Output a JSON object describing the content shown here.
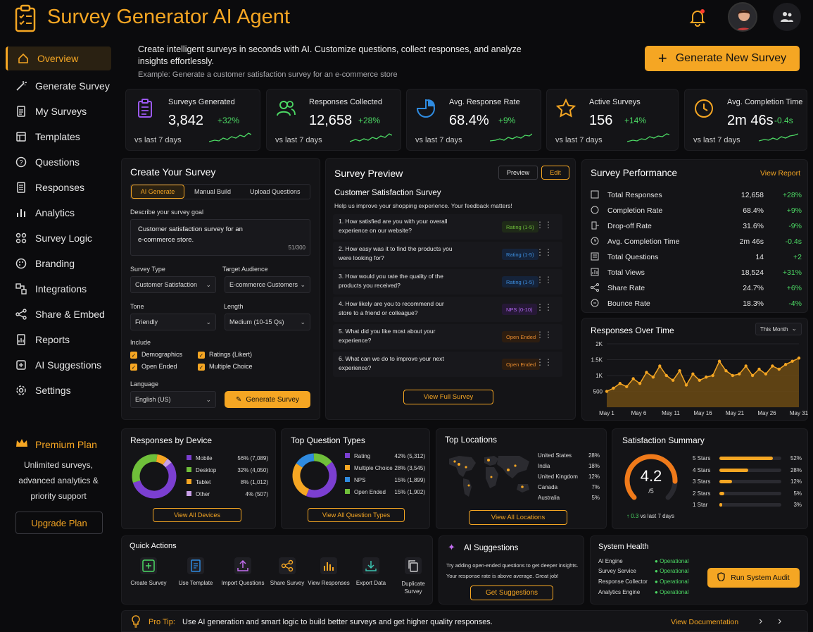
{
  "app": {
    "title": "Survey Generator AI Agent"
  },
  "sidebar": {
    "items": [
      {
        "label": "Overview"
      },
      {
        "label": "Generate Survey"
      },
      {
        "label": "My Surveys"
      },
      {
        "label": "Templates"
      },
      {
        "label": "Questions"
      },
      {
        "label": "Responses"
      },
      {
        "label": "Analytics"
      },
      {
        "label": "Survey Logic"
      },
      {
        "label": "Branding"
      },
      {
        "label": "Integrations"
      },
      {
        "label": "Share & Embed"
      },
      {
        "label": "Reports"
      },
      {
        "label": "AI Suggestions"
      },
      {
        "label": "Settings"
      }
    ],
    "premium": {
      "title": "Premium Plan",
      "line1": "Unlimited surveys,",
      "line2": "advanced analytics &",
      "line3": "priority support",
      "button": "Upgrade Plan"
    }
  },
  "hero": {
    "line1": "Create intelligent surveys in seconds with AI. Customize questions, collect responses, and analyze",
    "line2": "insights effortlessly.",
    "example": "Example: Generate a customer satisfaction survey for an e-commerce store",
    "button": "Generate New Survey"
  },
  "stats": [
    {
      "label": "Surveys Generated",
      "value": "3,842",
      "delta": "+32%",
      "vs": "vs last 7 days"
    },
    {
      "label": "Responses Collected",
      "value": "12,658",
      "delta": "+28%",
      "vs": "vs last 7 days"
    },
    {
      "label": "Avg. Response Rate",
      "value": "68.4%",
      "delta": "+9%",
      "vs": "vs last 7 days"
    },
    {
      "label": "Active Surveys",
      "value": "156",
      "delta": "+14%",
      "vs": "vs last 7 days"
    },
    {
      "label": "Avg. Completion Time",
      "value": "2m 46s",
      "delta": "-0.4s",
      "vs": "vs last 7 days"
    }
  ],
  "create": {
    "title": "Create Your Survey",
    "tabs": [
      "AI Generate",
      "Manual Build",
      "Upload Questions"
    ],
    "goal_label": "Describe your survey goal",
    "goal_line1": "Customer satisfaction survey for an",
    "goal_line2": "e-commerce store.",
    "goal_count": "51/300",
    "type_label": "Survey Type",
    "type_value": "Customer Satisfaction",
    "audience_label": "Target Audience",
    "audience_value": "E-commerce Customers",
    "tone_label": "Tone",
    "tone_value": "Friendly",
    "length_label": "Length",
    "length_value": "Medium (10-15 Qs)",
    "include_label": "Include",
    "includes": [
      "Demographics",
      "Ratings (Likert)",
      "Open Ended",
      "Multiple Choice"
    ],
    "language_label": "Language",
    "language_value": "English (US)",
    "generate_button": "Generate Survey"
  },
  "preview": {
    "title": "Survey Preview",
    "preview_button": "Preview",
    "edit_button": "Edit",
    "survey_title": "Customer Satisfaction Survey",
    "survey_desc": "Help us improve your shopping experience. Your feedback matters!",
    "questions": [
      {
        "text": "1.   How satisfied are you with your overall experience on our website?",
        "tag": "Rating (1-5)"
      },
      {
        "text": "2.   How easy was it to find the products you were looking for?",
        "tag": "Rating (1-5)"
      },
      {
        "text": "3.   How would you rate the quality of the products you received?",
        "tag": "Rating (1-5)"
      },
      {
        "text": "4.   How likely are you to recommend our store to a friend or colleague?",
        "tag": "NPS (0-10)"
      },
      {
        "text": "5.   What did you like most about your experience?",
        "tag": "Open Ended"
      },
      {
        "text": "6.   What can we do to improve your next experience?",
        "tag": "Open Ended"
      }
    ],
    "full_button": "View Full Survey"
  },
  "performance": {
    "title": "Survey Performance",
    "link": "View Report",
    "rows": [
      {
        "label": "Total Responses",
        "value": "12,658",
        "delta": "+28%"
      },
      {
        "label": "Completion Rate",
        "value": "68.4%",
        "delta": "+9%"
      },
      {
        "label": "Drop-off Rate",
        "value": "31.6%",
        "delta": "-9%"
      },
      {
        "label": "Avg. Completion Time",
        "value": "2m 46s",
        "delta": "-0.4s"
      },
      {
        "label": "Total Questions",
        "value": "14",
        "delta": "+2"
      },
      {
        "label": "Total Views",
        "value": "18,524",
        "delta": "+31%"
      },
      {
        "label": "Share Rate",
        "value": "24.7%",
        "delta": "+6%"
      },
      {
        "label": "Bounce Rate",
        "value": "18.3%",
        "delta": "-4%"
      }
    ]
  },
  "chart_data": {
    "type": "area",
    "title": "Responses Over Time",
    "range_select": "This Month",
    "x_ticks": [
      "May 1",
      "May 6",
      "May 11",
      "May 16",
      "May 21",
      "May 26",
      "May 31"
    ],
    "y_ticks": [
      "500",
      "1K",
      "1.5K",
      "2K"
    ],
    "ylim": [
      0,
      2000
    ],
    "values": [
      500,
      600,
      750,
      650,
      900,
      750,
      1100,
      950,
      1300,
      1000,
      850,
      1150,
      700,
      1050,
      850,
      950,
      1000,
      1450,
      1150,
      1000,
      1050,
      1300,
      1000,
      1200,
      1050,
      1300,
      1200,
      1350,
      1450,
      1550
    ]
  },
  "devices": {
    "title": "Responses by Device",
    "items": [
      {
        "name": "Mobile",
        "pct": "56%",
        "count": "(7,089)",
        "value": 56,
        "color": "#7b3fd1"
      },
      {
        "name": "Desktop",
        "pct": "32%",
        "count": "(4,050)",
        "value": 32,
        "color": "#6fbf3a"
      },
      {
        "name": "Tablet",
        "pct": "8%",
        "count": "(1,012)",
        "value": 8,
        "color": "#f5a623"
      },
      {
        "name": "Other",
        "pct": "4%",
        "count": "(507)",
        "value": 4,
        "color": "#c9a0e8"
      }
    ],
    "button": "View All Devices"
  },
  "qtypes": {
    "title": "Top Question Types",
    "items": [
      {
        "name": "Rating",
        "pct": "42%",
        "count": "(5,312)",
        "value": 42,
        "color": "#7b3fd1"
      },
      {
        "name": "Multiple Choice",
        "pct": "28%",
        "count": "(3,545)",
        "value": 28,
        "color": "#f5a623"
      },
      {
        "name": "NPS",
        "pct": "15%",
        "count": "(1,899)",
        "value": 15,
        "color": "#2f8be0"
      },
      {
        "name": "Open Ended",
        "pct": "15%",
        "count": "(1,902)",
        "value": 15,
        "color": "#6fbf3a"
      }
    ],
    "button": "View All Question Types"
  },
  "locations": {
    "title": "Top Locations",
    "items": [
      {
        "name": "United States",
        "pct": "28%"
      },
      {
        "name": "India",
        "pct": "18%"
      },
      {
        "name": "United Kingdom",
        "pct": "12%"
      },
      {
        "name": "Canada",
        "pct": "7%"
      },
      {
        "name": "Australia",
        "pct": "5%"
      }
    ],
    "button": "View All Locations"
  },
  "satisfaction": {
    "title": "Satisfaction Summary",
    "score": "4.2",
    "out_of": "/5",
    "score_value": 4.2,
    "trend": "↑ 0.3",
    "trend_vs": "vs last 7 days",
    "rows": [
      {
        "label": "5 Stars",
        "pct": "52%",
        "value": 52
      },
      {
        "label": "4 Stars",
        "pct": "28%",
        "value": 28
      },
      {
        "label": "3 Stars",
        "pct": "12%",
        "value": 12
      },
      {
        "label": "2 Stars",
        "pct": "5%",
        "value": 5
      },
      {
        "label": "1 Star",
        "pct": "3%",
        "value": 3
      }
    ]
  },
  "quick": {
    "title": "Quick Actions",
    "items": [
      {
        "label": "Create Survey",
        "icon": "plus-square-icon"
      },
      {
        "label": "Use Template",
        "icon": "document-icon"
      },
      {
        "label": "Import Questions",
        "icon": "upload-icon"
      },
      {
        "label": "Share Survey",
        "icon": "share-icon"
      },
      {
        "label": "View Responses",
        "icon": "bar-chart-icon"
      },
      {
        "label": "Export Data",
        "icon": "download-icon"
      },
      {
        "label": "Duplicate Survey",
        "icon": "copy-icon"
      }
    ]
  },
  "ai": {
    "title": "AI Suggestions",
    "line1": "Try adding open-ended questions to get deeper insights.",
    "line2": "Your response rate is above average. Great job!",
    "button": "Get Suggestions"
  },
  "health": {
    "title": "System Health",
    "items": [
      {
        "name": "AI Engine",
        "status": "Operational"
      },
      {
        "name": "Survey Service",
        "status": "Operational"
      },
      {
        "name": "Response Collector",
        "status": "Operational"
      },
      {
        "name": "Analytics Engine",
        "status": "Operational"
      }
    ],
    "button": "Run System Audit"
  },
  "tip": {
    "label": "Pro Tip:",
    "text": "Use AI generation and smart logic to build better surveys and get higher quality responses.",
    "link": "View Documentation"
  }
}
